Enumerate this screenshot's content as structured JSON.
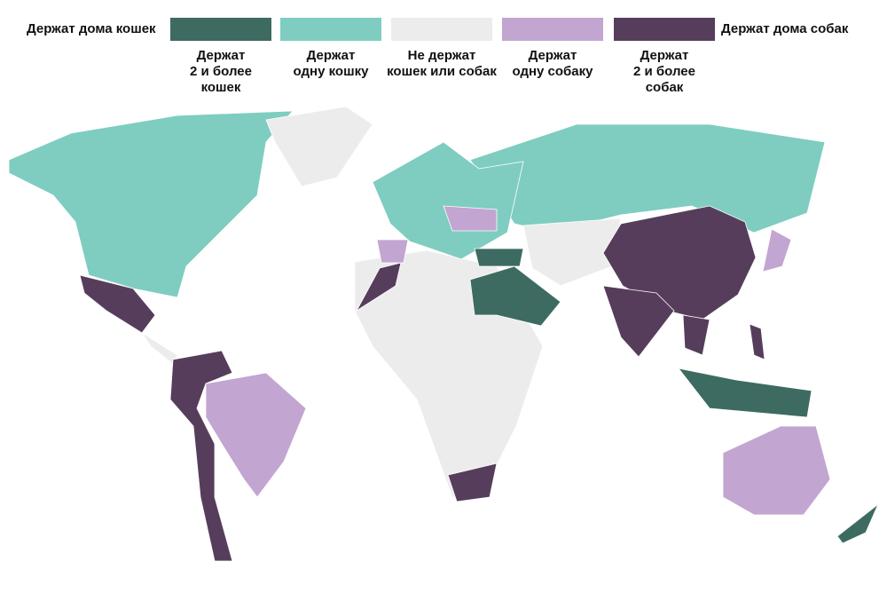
{
  "legend": {
    "left_title": "Держат дома кошек",
    "right_title": "Держат дома собак",
    "items": [
      {
        "label": "Держат\n2 и более\nкошек",
        "color": "#3d6b62"
      },
      {
        "label": "Держат\nодну кошку",
        "color": "#7ecdc0"
      },
      {
        "label": "Не держат\nкошек или собак",
        "color": "#ececec"
      },
      {
        "label": "Держат\nодну собаку",
        "color": "#c2a5d0"
      },
      {
        "label": "Держат\n2 и более\nсобак",
        "color": "#573d5c"
      }
    ]
  }
}
